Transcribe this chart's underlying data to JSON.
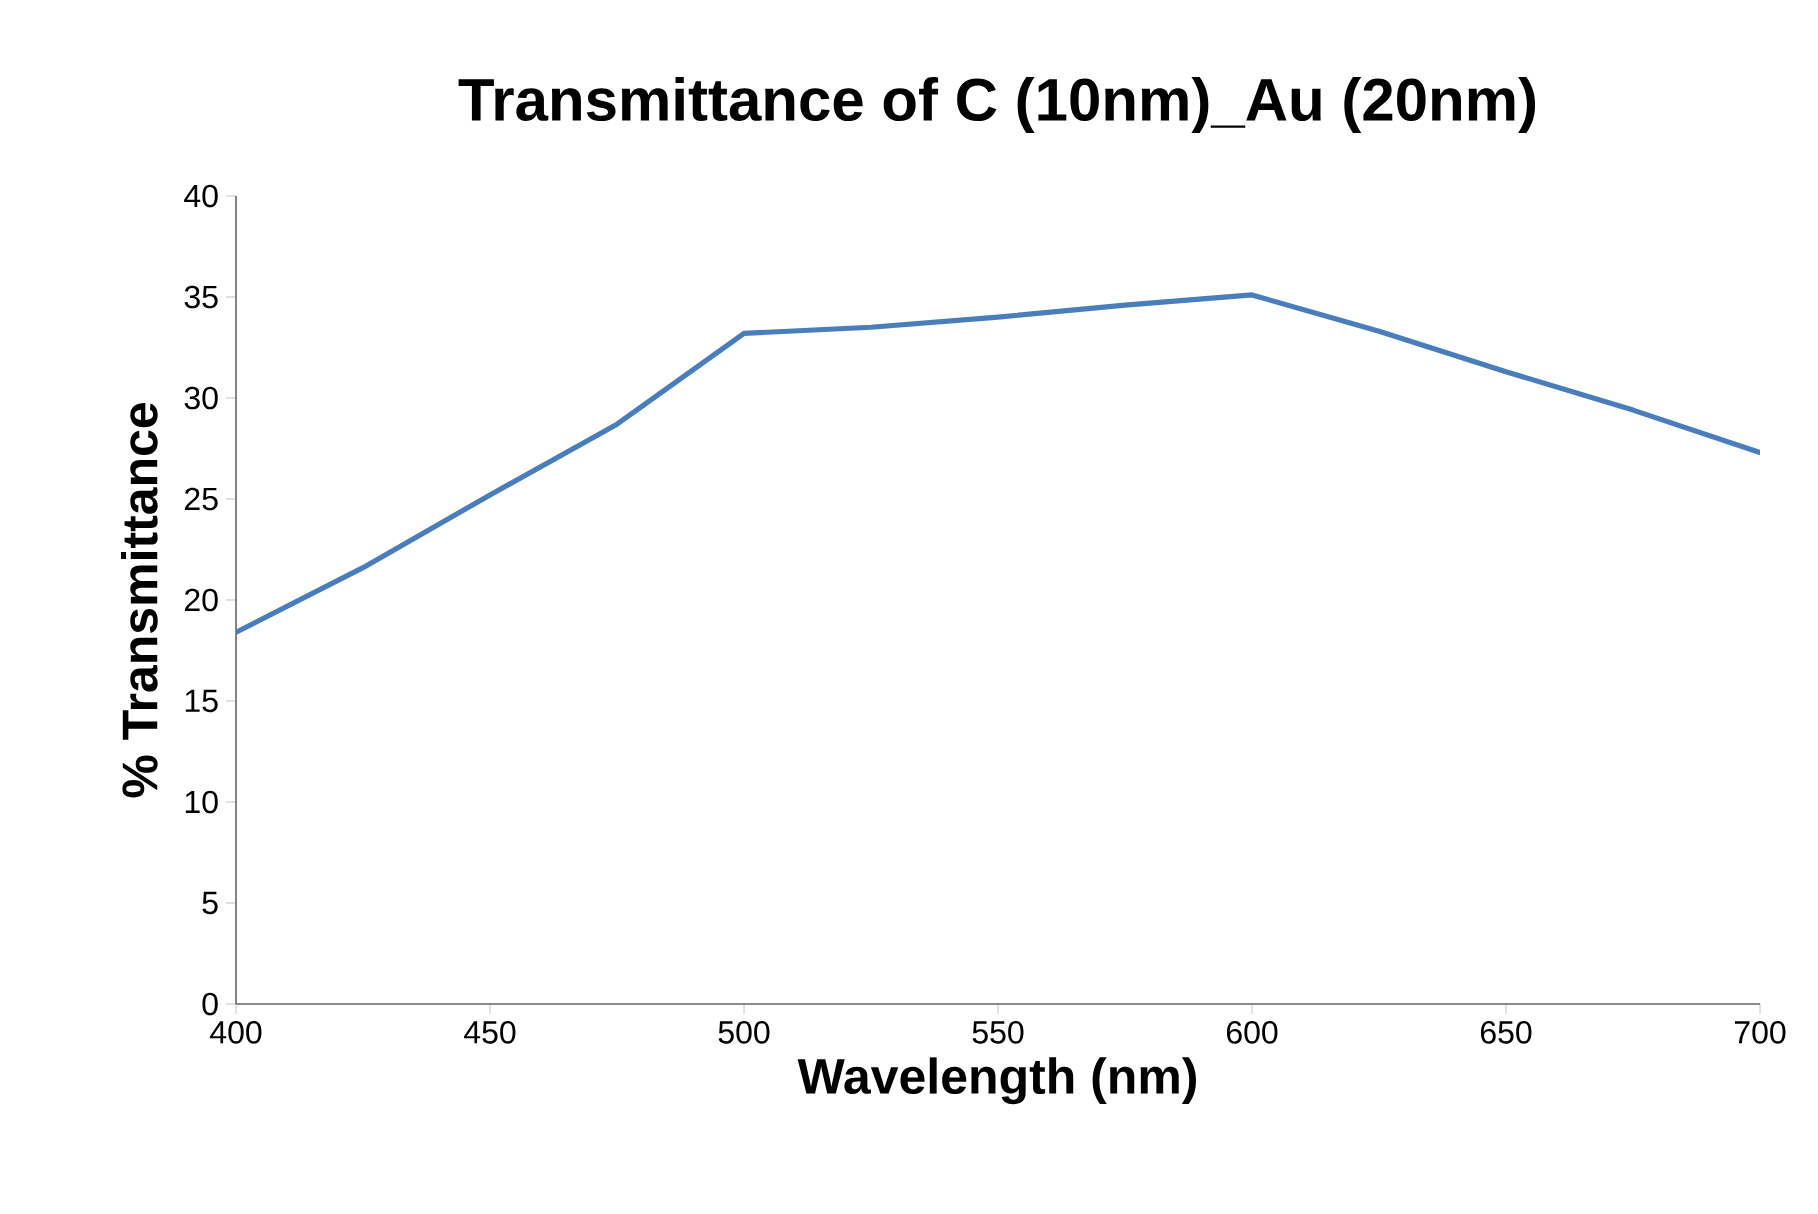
{
  "chart_data": {
    "type": "line",
    "title": "Transmittance of C (10nm)_Au (20nm)",
    "xlabel": "Wavelength (nm)",
    "ylabel": "% Transmittance",
    "x": [
      400,
      425,
      450,
      475,
      500,
      525,
      550,
      575,
      600,
      625,
      650,
      675,
      700
    ],
    "series": [
      {
        "color": "#4a7ebb",
        "values": [
          18.4,
          21.6,
          25.2,
          28.7,
          33.2,
          33.5,
          34.0,
          34.6,
          35.1,
          33.3,
          31.3,
          29.4,
          27.3
        ]
      }
    ],
    "xlim": [
      400,
      700
    ],
    "xticks": [
      400,
      450,
      500,
      550,
      600,
      650,
      700
    ],
    "ylim": [
      0,
      40
    ],
    "yticks": [
      0,
      5,
      10,
      15,
      20,
      25,
      30,
      35,
      40
    ],
    "grid": false,
    "legend": false,
    "marker": "none",
    "line_style": "solid"
  }
}
